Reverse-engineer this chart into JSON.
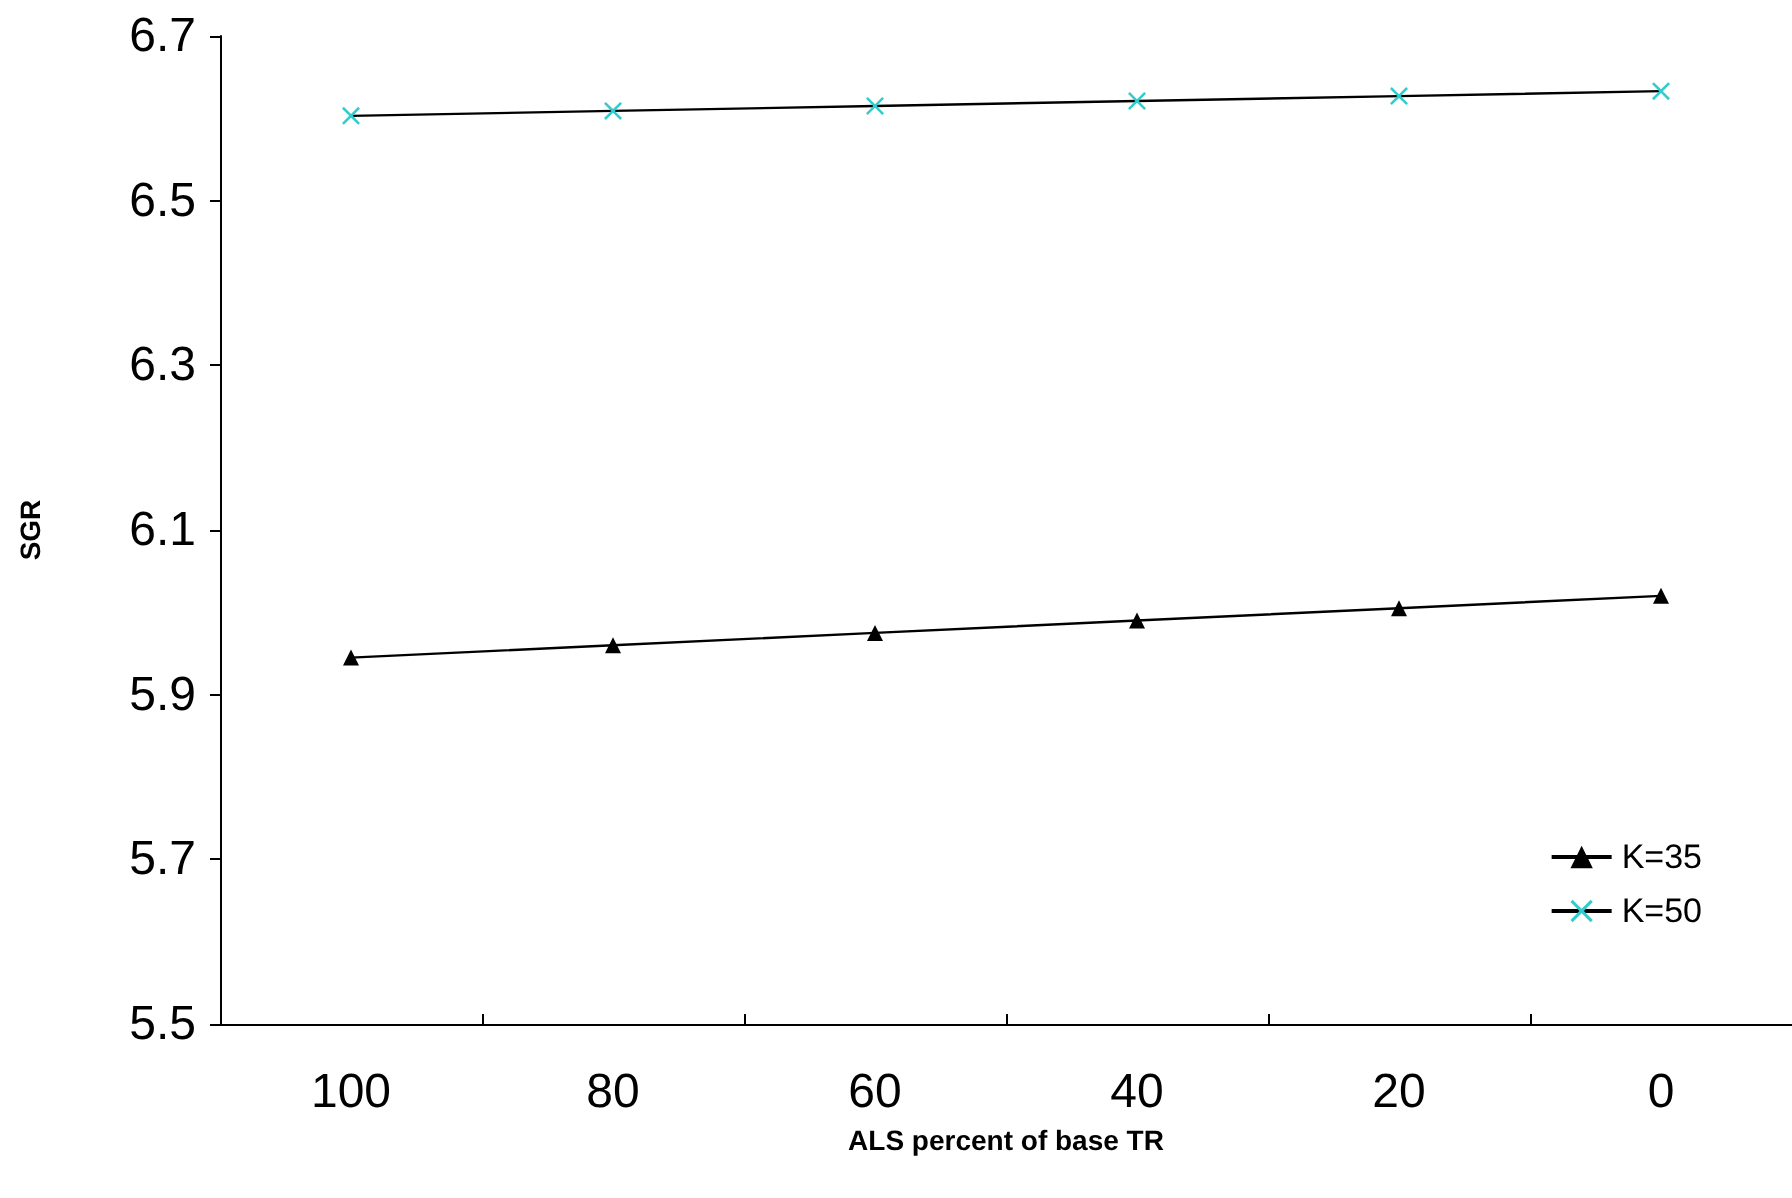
{
  "chart_data": {
    "type": "line",
    "xlabel": "ALS percent of base TR",
    "ylabel": "SGR",
    "categories": [
      "100",
      "80",
      "60",
      "40",
      "20",
      "0"
    ],
    "series": [
      {
        "name": "K=35",
        "color": "#000000",
        "marker": "triangle",
        "values": [
          5.945,
          5.96,
          5.975,
          5.99,
          6.005,
          6.02
        ]
      },
      {
        "name": "K=50",
        "color": "#33cccc",
        "marker": "cross",
        "values": [
          6.603,
          6.609,
          6.615,
          6.621,
          6.627,
          6.633
        ]
      }
    ],
    "ylim": [
      5.5,
      6.7
    ],
    "yticks": [
      5.5,
      5.7,
      5.9,
      6.1,
      6.3,
      6.5,
      6.7
    ],
    "grid": false,
    "legend": "bottom right",
    "line_style": "solid"
  }
}
